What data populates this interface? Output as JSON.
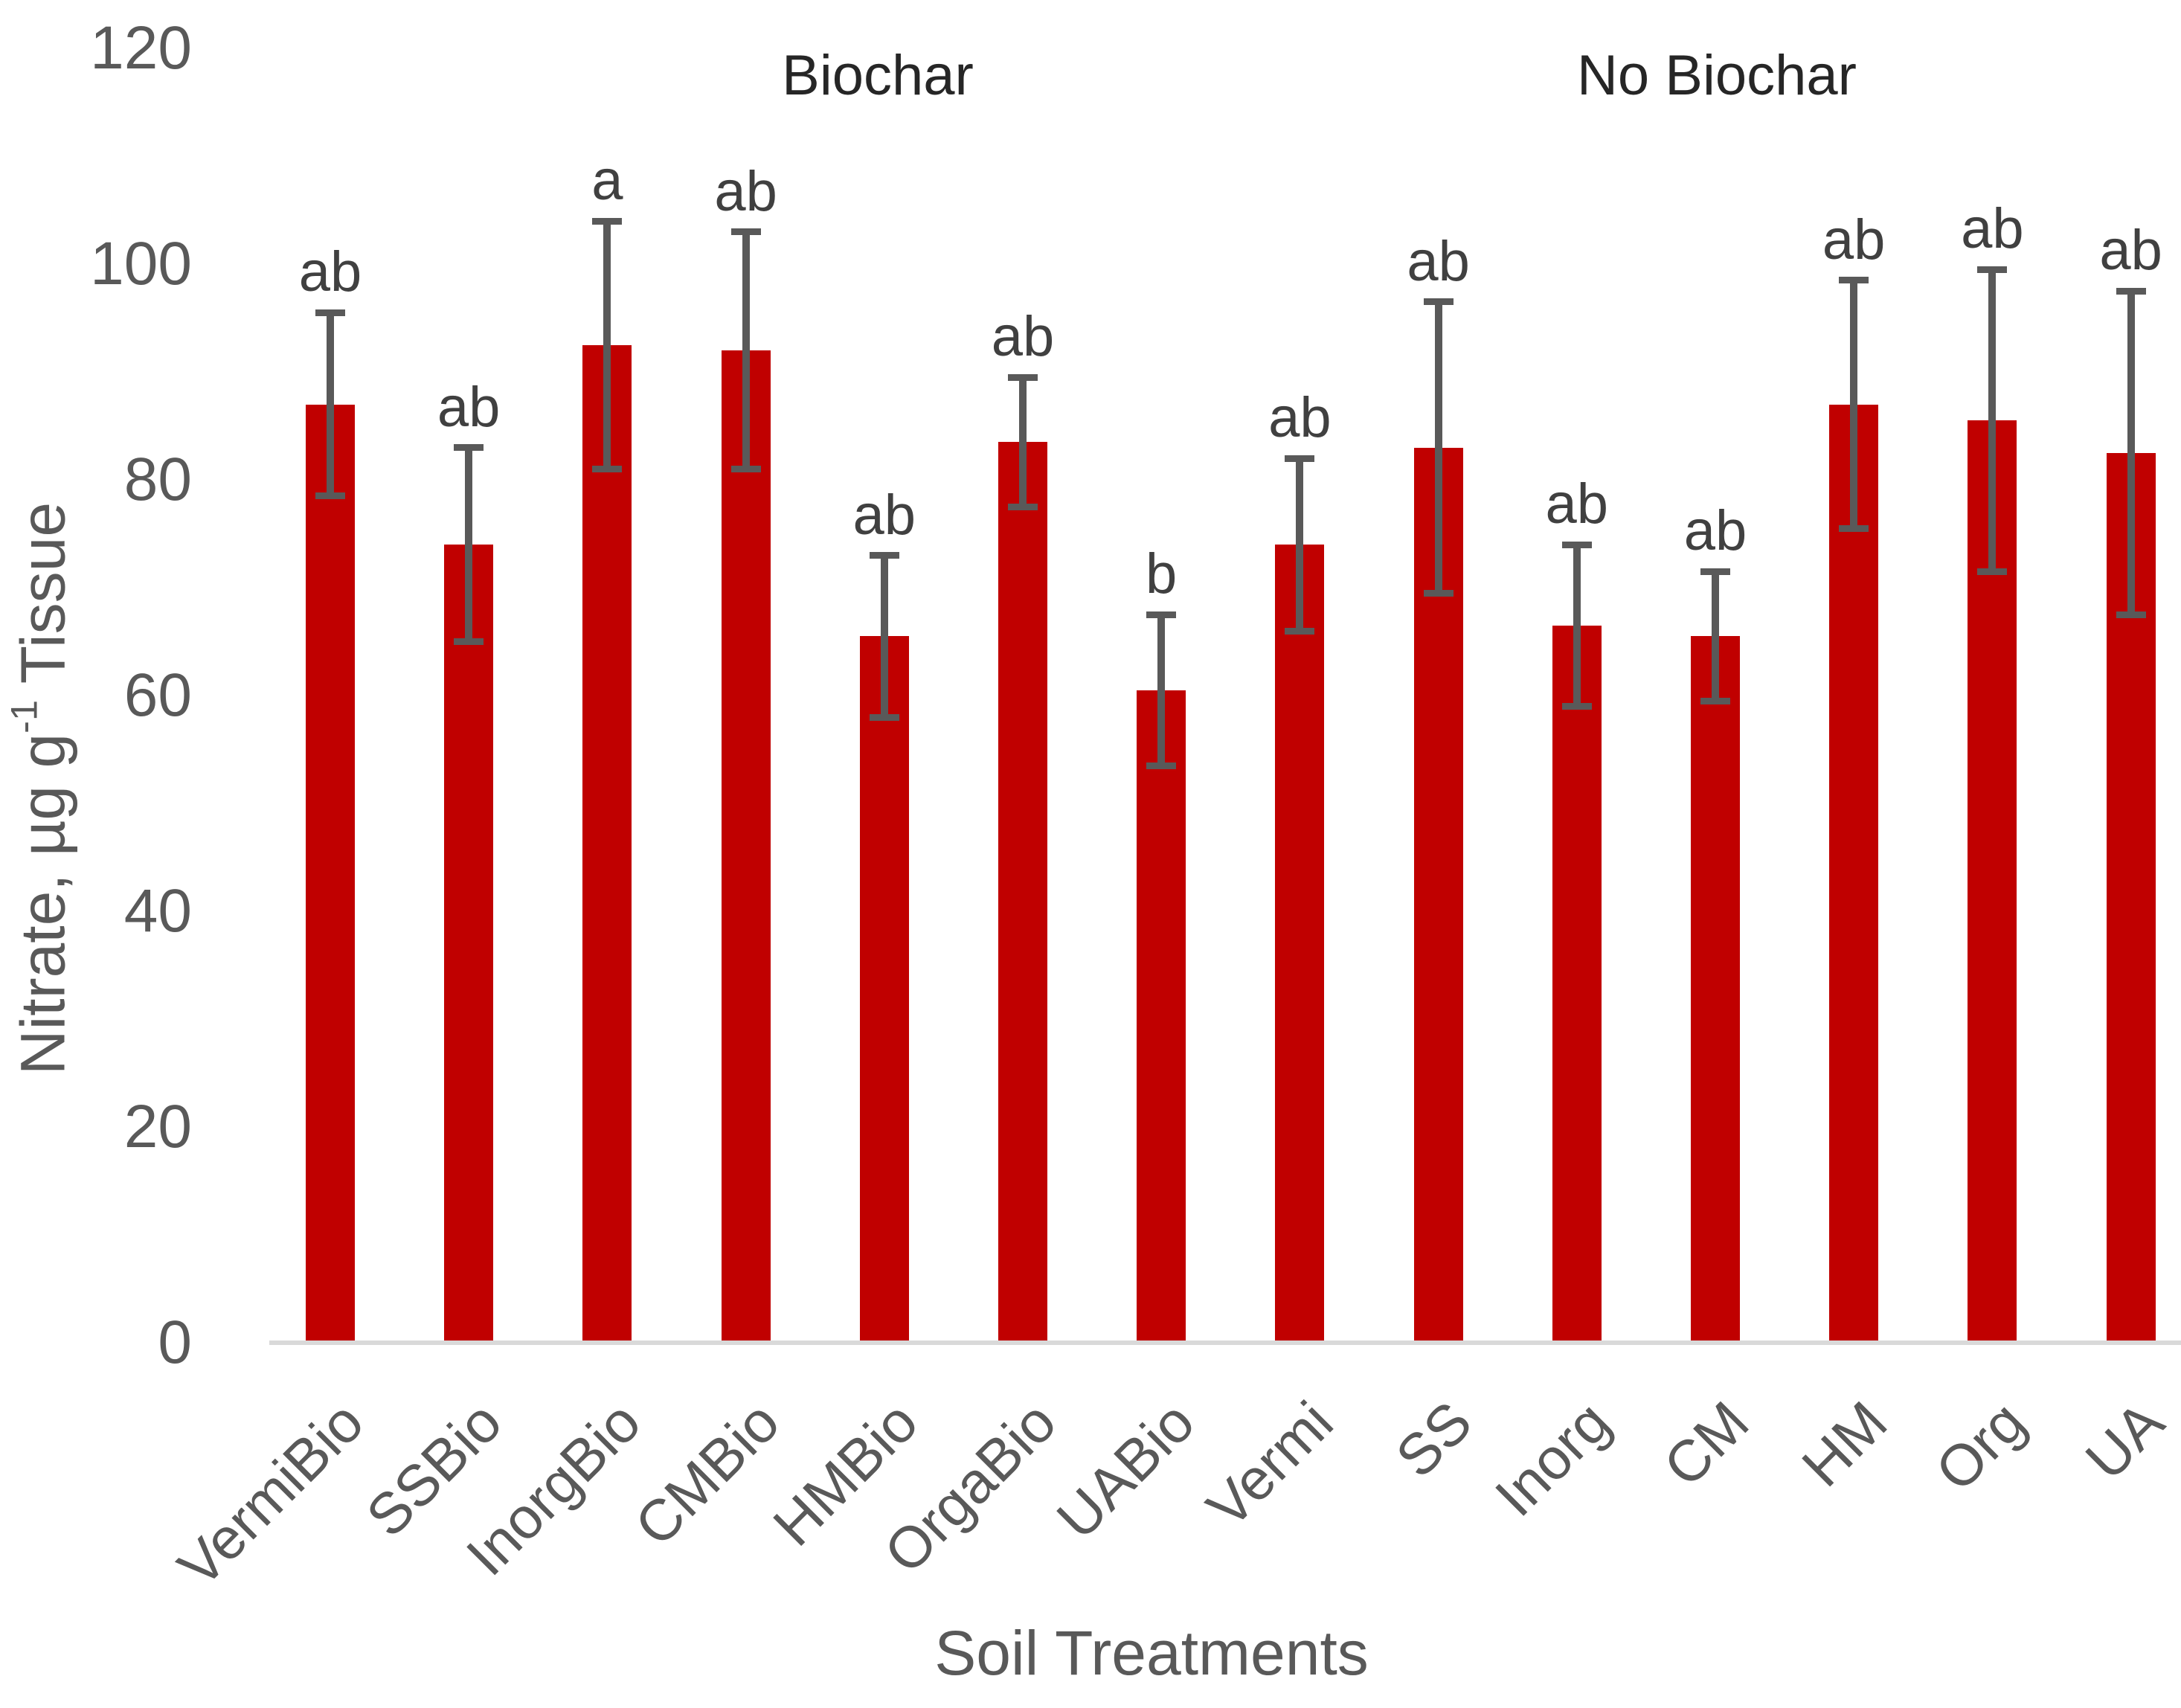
{
  "chart_data": {
    "type": "bar",
    "title": "",
    "xlabel": "Soil Treatments",
    "ylabel": "Nitrate, µg g-1 Tissue",
    "ylabel_parts": {
      "prefix": "Nitrate, µg g",
      "superscript": "-1",
      "suffix": " Tissue"
    },
    "ylim": [
      0,
      120
    ],
    "yticks": [
      0,
      20,
      40,
      60,
      80,
      100,
      120
    ],
    "grid": "off",
    "legend": "none",
    "group_labels": [
      "Biochar",
      "No Biochar"
    ],
    "categories": [
      "VermiBio",
      "SSBio",
      "InorgBio",
      "CMBio",
      "HMBio",
      "OrgaBio",
      "UABio",
      "Vermi",
      "SS",
      "Inorg",
      "CM",
      "HM",
      "Org",
      "UA"
    ],
    "series": [
      {
        "name": "Nitrate",
        "values": [
          87,
          74,
          92.5,
          92,
          65.5,
          83.5,
          60.5,
          74,
          83,
          66.5,
          65.5,
          87,
          85.5,
          82.5
        ],
        "error_bars": [
          8.5,
          9,
          11.5,
          11,
          7.5,
          6,
          7,
          8,
          13.5,
          7.5,
          6,
          11.5,
          14,
          15
        ]
      }
    ],
    "significance_letters": [
      "ab",
      "ab",
      "a",
      "ab",
      "ab",
      "ab",
      "b",
      "ab",
      "ab",
      "ab",
      "ab",
      "ab",
      "ab",
      "ab"
    ],
    "colors": {
      "bar": "#C00000",
      "error_bar": "#595959",
      "axis_line": "#D9D9D9",
      "tick_label": "#595959",
      "axis_title": "#595959",
      "significance_letter": "#404040",
      "group_label": "#262626",
      "background": "#FFFFFF"
    }
  }
}
